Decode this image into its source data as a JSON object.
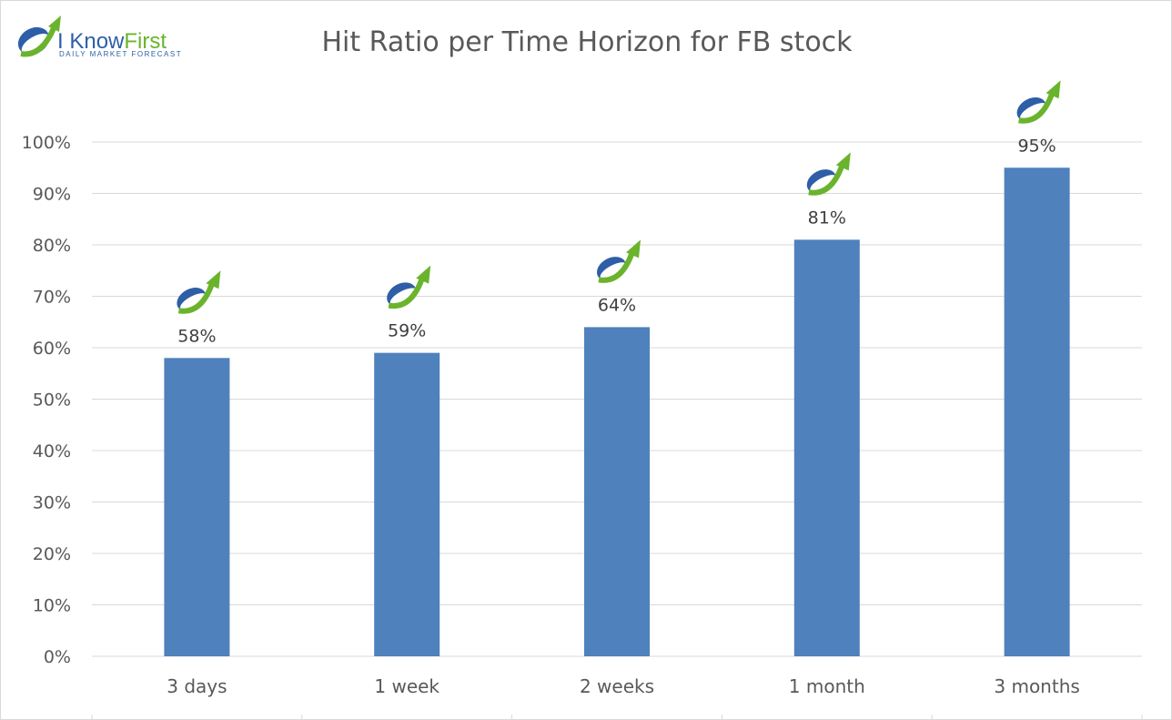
{
  "brand": {
    "name_part1": "I Know",
    "name_part2": "First",
    "tagline": "Daily Market Forecast",
    "icon": "i-know-first-logo-icon"
  },
  "colors": {
    "bar": "#4f81bd",
    "grid": "#d9d9d9",
    "text": "#595959",
    "brand_blue": "#2e5ea8",
    "brand_green": "#6ab42d"
  },
  "chart_data": {
    "type": "bar",
    "title": "Hit Ratio per Time Horizon for FB stock",
    "categories": [
      "3 days",
      "1 week",
      "2 weeks",
      "1 month",
      "3 months"
    ],
    "values": [
      58,
      59,
      64,
      81,
      95
    ],
    "data_labels": [
      "58%",
      "59%",
      "64%",
      "81%",
      "95%"
    ],
    "ylim": [
      0,
      100
    ],
    "yticks": [
      "0%",
      "10%",
      "20%",
      "30%",
      "40%",
      "50%",
      "60%",
      "70%",
      "80%",
      "90%",
      "100%"
    ],
    "grid": true,
    "legend": "none",
    "marker_icon": "i-know-first-logo-icon"
  }
}
